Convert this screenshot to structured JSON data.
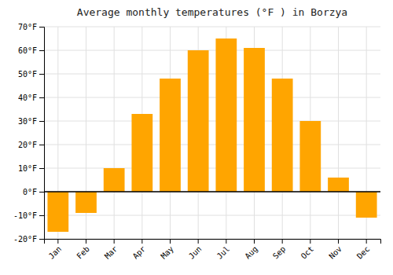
{
  "chart_data": {
    "type": "bar",
    "title": "Average monthly temperatures (°F ) in Borzya",
    "categories": [
      "Jan",
      "Feb",
      "Mar",
      "Apr",
      "May",
      "Jun",
      "Jul",
      "Aug",
      "Sep",
      "Oct",
      "Nov",
      "Dec"
    ],
    "values": [
      -17,
      -9,
      10,
      33,
      48,
      60,
      65,
      61,
      48,
      30,
      6,
      -11
    ],
    "color": "#FFA500",
    "ylim": [
      -20,
      70
    ],
    "yticks": [
      {
        "value": -20,
        "label": "-20°F"
      },
      {
        "value": -10,
        "label": "-10°F"
      },
      {
        "value": 0,
        "label": "0°F"
      },
      {
        "value": 10,
        "label": "10°F"
      },
      {
        "value": 20,
        "label": "20°F"
      },
      {
        "value": 30,
        "label": "30°F"
      },
      {
        "value": 40,
        "label": "40°F"
      },
      {
        "value": 50,
        "label": "50°F"
      },
      {
        "value": 60,
        "label": "60°F"
      },
      {
        "value": 70,
        "label": "70°F"
      }
    ],
    "grid": true
  }
}
